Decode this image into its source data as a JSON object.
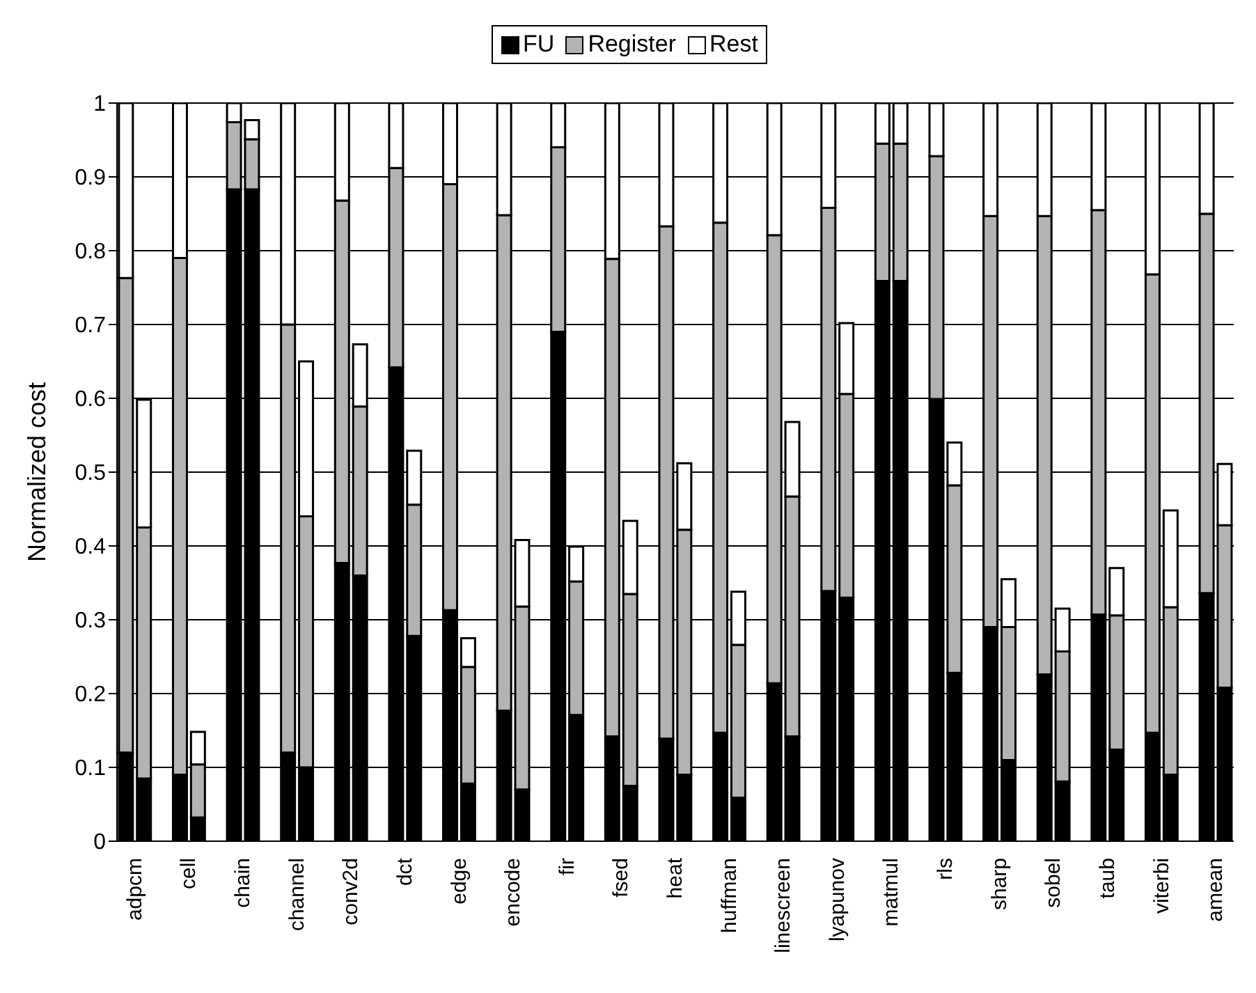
{
  "chart_data": {
    "type": "bar",
    "stacked": true,
    "ylabel": "Normalized cost",
    "legend": "top",
    "grid": "y",
    "ylim": [
      0,
      1
    ],
    "yticks": [
      0,
      0.1,
      0.2,
      0.3,
      0.4,
      0.5,
      0.6,
      0.7,
      0.8,
      0.9,
      1
    ],
    "categories": [
      "adpcm",
      null,
      null,
      "cell",
      null,
      null,
      "chain",
      null,
      null,
      "channel",
      null,
      null,
      "conv2d",
      null,
      null,
      "dct",
      null,
      null,
      "edge",
      null,
      null,
      "encode",
      null,
      null,
      "fir",
      null,
      null,
      "fsed",
      null,
      null,
      "heat",
      null,
      null,
      "huffman",
      null,
      null,
      "linescreen",
      null,
      null,
      "lyapunov",
      null,
      null,
      "matmul",
      null,
      null,
      "rls",
      null,
      null,
      "sharp",
      null,
      null,
      "sobel",
      null,
      null,
      "taub",
      null,
      null,
      "viterbi",
      null,
      null,
      "amean",
      null
    ],
    "series": [
      {
        "name": "FU",
        "color": "#000000",
        "values": [
          0.12,
          0.085,
          null,
          0.09,
          0.032,
          null,
          0.883,
          0.883,
          null,
          0.12,
          0.1,
          null,
          0.377,
          0.36,
          null,
          0.642,
          0.278,
          null,
          0.313,
          0.078,
          null,
          0.177,
          0.07,
          null,
          0.69,
          0.171,
          null,
          0.142,
          0.075,
          null,
          0.139,
          0.09,
          null,
          0.147,
          0.059,
          null,
          0.214,
          0.142,
          null,
          0.339,
          0.33,
          null,
          0.759,
          0.759,
          null,
          0.599,
          0.228,
          null,
          0.29,
          0.11,
          null,
          0.226,
          0.081,
          null,
          0.307,
          0.124,
          null,
          0.147,
          0.09,
          null,
          0.336,
          0.208
        ]
      },
      {
        "name": "Register",
        "color": "#b3b3b3",
        "values": [
          0.643,
          0.34,
          null,
          0.7,
          0.072,
          null,
          0.091,
          0.068,
          null,
          0.58,
          0.34,
          null,
          0.491,
          0.229,
          null,
          0.27,
          0.178,
          null,
          0.577,
          0.158,
          null,
          0.671,
          0.248,
          null,
          0.25,
          0.181,
          null,
          0.647,
          0.26,
          null,
          0.694,
          0.332,
          null,
          0.691,
          0.207,
          null,
          0.607,
          0.325,
          null,
          0.519,
          0.276,
          null,
          0.186,
          0.186,
          null,
          0.329,
          0.254,
          null,
          0.557,
          0.18,
          null,
          0.621,
          0.176,
          null,
          0.548,
          0.182,
          null,
          0.621,
          0.227,
          null,
          0.514,
          0.22
        ]
      },
      {
        "name": "Rest",
        "color": "#ffffff",
        "values": [
          0.237,
          0.173,
          null,
          0.21,
          0.044,
          null,
          0.026,
          0.026,
          null,
          0.3,
          0.21,
          null,
          0.132,
          0.084,
          null,
          0.088,
          0.073,
          null,
          0.11,
          0.039,
          null,
          0.152,
          0.09,
          null,
          0.06,
          0.047,
          null,
          0.211,
          0.099,
          null,
          0.167,
          0.09,
          null,
          0.162,
          0.072,
          null,
          0.179,
          0.101,
          null,
          0.142,
          0.096,
          null,
          0.055,
          0.055,
          null,
          0.072,
          0.058,
          null,
          0.153,
          0.065,
          null,
          0.153,
          0.058,
          null,
          0.145,
          0.064,
          null,
          0.232,
          0.131,
          null,
          0.15,
          0.083
        ]
      }
    ]
  }
}
